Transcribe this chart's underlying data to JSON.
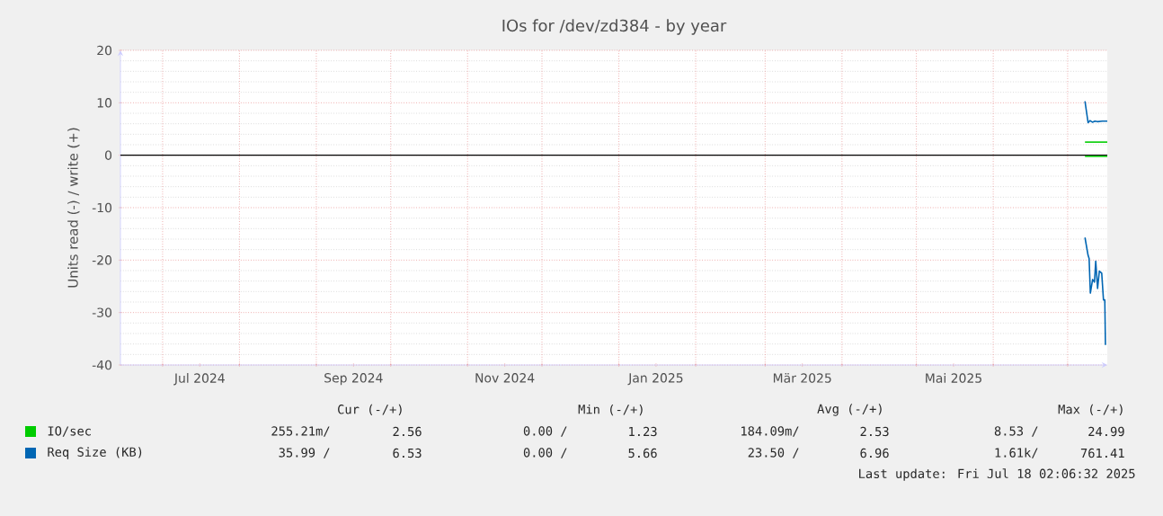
{
  "chart_data": {
    "type": "line",
    "title": "IOs for /dev/zd384 - by year",
    "ylabel": "Units read (-) / write (+)",
    "xlim": [
      "2024-06-14",
      "2025-07-17"
    ],
    "xticks": [
      {
        "value": "2024-07-16",
        "label": "Jul 2024"
      },
      {
        "value": "2024-09-16",
        "label": "Sep 2024"
      },
      {
        "value": "2024-11-16",
        "label": "Nov 2024"
      },
      {
        "value": "2025-01-16",
        "label": "Jan 2025"
      },
      {
        "value": "2025-03-16",
        "label": "Mär 2025"
      },
      {
        "value": "2025-05-16",
        "label": "Mai 2025"
      },
      {
        "value": "2024-07-01",
        "label": null
      },
      {
        "value": "2024-08-01",
        "label": null
      },
      {
        "value": "2024-09-01",
        "label": null
      },
      {
        "value": "2024-10-01",
        "label": null
      },
      {
        "value": "2024-11-01",
        "label": null
      },
      {
        "value": "2024-12-01",
        "label": null
      },
      {
        "value": "2025-01-01",
        "label": null
      },
      {
        "value": "2025-02-01",
        "label": null
      },
      {
        "value": "2025-03-01",
        "label": null
      },
      {
        "value": "2025-04-01",
        "label": null
      },
      {
        "value": "2025-05-01",
        "label": null
      },
      {
        "value": "2025-06-01",
        "label": null
      },
      {
        "value": "2025-07-01",
        "label": null
      }
    ],
    "ylim": [
      -40,
      20
    ],
    "yticks": [
      -40,
      -30,
      -20,
      -10,
      0,
      10,
      20
    ],
    "grid": true,
    "legend": "bottom",
    "ref_lines": [
      {
        "axis": "y",
        "value": 0,
        "color": "#000000"
      }
    ],
    "series": [
      {
        "name": "IO/sec",
        "color": "#00cc00",
        "x": [
          "2025-07-08T00:00",
          "2025-07-17T00:00"
        ],
        "values": [
          2.5,
          2.5
        ]
      },
      {
        "color": "#00cc00",
        "x": [
          "2025-07-08T00:00",
          "2025-07-17T00:00"
        ],
        "values": [
          -0.2,
          -0.2
        ]
      },
      {
        "name": "Req Size (KB)",
        "color": "#0066b3",
        "x": [
          "2025-07-08T00:00",
          "2025-07-09T06:00",
          "2025-07-10T00:00",
          "2025-07-11T00:00",
          "2025-07-12T00:00",
          "2025-07-13T00:00",
          "2025-07-15T00:00",
          "2025-07-17T00:00"
        ],
        "values": [
          10.3,
          6.2,
          6.6,
          6.3,
          6.5,
          6.4,
          6.5,
          6.5
        ]
      },
      {
        "color": "#0066b3",
        "x": [
          "2025-07-08T00:00",
          "2025-07-09T06:00",
          "2025-07-09T16:00",
          "2025-07-10T04:00",
          "2025-07-11T02:00",
          "2025-07-11T20:00",
          "2025-07-12T08:00",
          "2025-07-13T02:00",
          "2025-07-13T19:00",
          "2025-07-14T18:00",
          "2025-07-15T11:00",
          "2025-07-16T00:00",
          "2025-07-16T06:00"
        ],
        "values": [
          -15.7,
          -19.1,
          -19.7,
          -26.3,
          -23.7,
          -24.2,
          -20.2,
          -25.4,
          -22.1,
          -22.5,
          -27.6,
          -27.6,
          -36.2
        ]
      }
    ],
    "annotations": [
      "Cur (-/+)",
      "Min (-/+)",
      "Avg (-/+)",
      "Max (-/+)",
      "255.21m/",
      "2.56",
      "0.00 /",
      "1.23",
      "184.09m/",
      "2.53",
      "8.53 /",
      "24.99",
      "35.99 /",
      "6.53",
      "0.00 /",
      "5.66",
      "23.50 /",
      "6.96",
      "1.61k/",
      "761.41",
      "Last update: Fri Jul 18 02:06:32 2025"
    ]
  }
}
